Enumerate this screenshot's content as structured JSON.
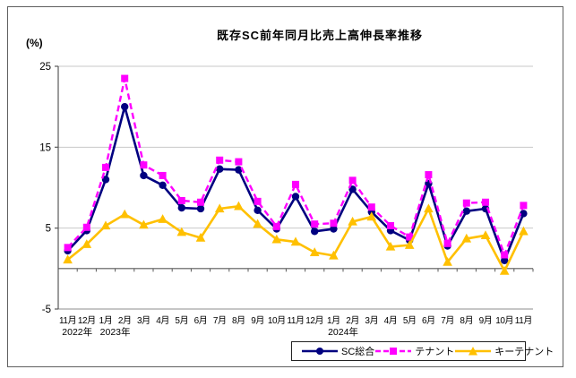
{
  "chart_data": {
    "type": "line",
    "title": "既存SC前年同月比売上高伸長率推移",
    "y_unit": "(%)",
    "ylim": [
      -5,
      25
    ],
    "y_ticks": [
      25,
      15,
      5,
      -5
    ],
    "grid": "horizontal gridlines at y ticks; category axis line drawn at 0 with tick marks",
    "legend_position": "bottom-right",
    "x_months": [
      "11月",
      "12月",
      "1月",
      "2月",
      "3月",
      "4月",
      "5月",
      "6月",
      "7月",
      "8月",
      "9月",
      "10月",
      "11月",
      "12月",
      "1月",
      "2月",
      "3月",
      "4月",
      "5月",
      "6月",
      "7月",
      "8月",
      "9月",
      "10月",
      "11月"
    ],
    "x_years": [
      {
        "label": "2022年",
        "start_index": 0
      },
      {
        "label": "2023年",
        "start_index": 2
      },
      {
        "label": "2024年",
        "start_index": 14
      }
    ],
    "series": [
      {
        "name": "SC総合",
        "key": "sc-total",
        "color": "#000080",
        "line_style": "solid",
        "marker": "circle",
        "values": [
          2.2,
          4.7,
          11.0,
          20.0,
          11.5,
          10.3,
          7.5,
          7.4,
          12.3,
          12.2,
          7.2,
          4.9,
          8.9,
          4.6,
          4.9,
          9.8,
          7.0,
          4.7,
          3.5,
          10.5,
          2.8,
          7.1,
          7.4,
          1.0,
          6.8
        ]
      },
      {
        "name": "テナント",
        "key": "tenant",
        "color": "#FF00FF",
        "line_style": "dashed",
        "marker": "square",
        "values": [
          2.6,
          5.1,
          12.5,
          23.5,
          12.8,
          11.5,
          8.4,
          8.2,
          13.4,
          13.2,
          8.3,
          5.2,
          10.4,
          5.5,
          5.6,
          10.9,
          7.6,
          5.3,
          3.9,
          11.6,
          3.1,
          8.1,
          8.2,
          1.7,
          7.8
        ]
      },
      {
        "name": "キーテナント",
        "key": "key-tenant",
        "color": "#FFC000",
        "line_style": "solid",
        "marker": "triangle",
        "values": [
          1.1,
          3.0,
          5.3,
          6.7,
          5.4,
          6.1,
          4.5,
          3.8,
          7.4,
          7.7,
          5.5,
          3.6,
          3.3,
          2.0,
          1.6,
          5.8,
          6.4,
          2.7,
          2.9,
          7.4,
          0.8,
          3.7,
          4.1,
          -0.3,
          4.6
        ]
      }
    ],
    "colors": {
      "gridline": "#C8C8C8",
      "axis": "#595959",
      "plot_bottom_border": "#8C8C8C",
      "text": "#000000"
    }
  }
}
